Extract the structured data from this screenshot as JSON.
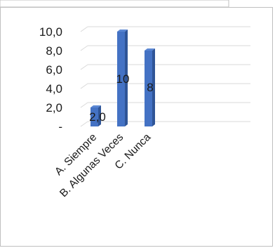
{
  "chart_data": {
    "type": "bar",
    "categories": [
      "A. Siempre",
      "B. Algunas Veces",
      "C. Nunca"
    ],
    "values": [
      2.0,
      10,
      8
    ],
    "data_labels": [
      "2,0",
      "10",
      "8"
    ],
    "y_tick_labels": [
      "-",
      "2,0",
      "4,0",
      "6,0",
      "8,0",
      "10,0"
    ],
    "ylim": [
      0,
      10
    ],
    "grid": true,
    "legend": "none",
    "title": "",
    "xlabel": "",
    "ylabel": "",
    "colors": {
      "bar_front": "#4472c4",
      "bar_side": "#2f5597",
      "bar_top": "#5b87d3",
      "gridline": "#d9d9d9",
      "border": "#bfbfbf"
    }
  }
}
